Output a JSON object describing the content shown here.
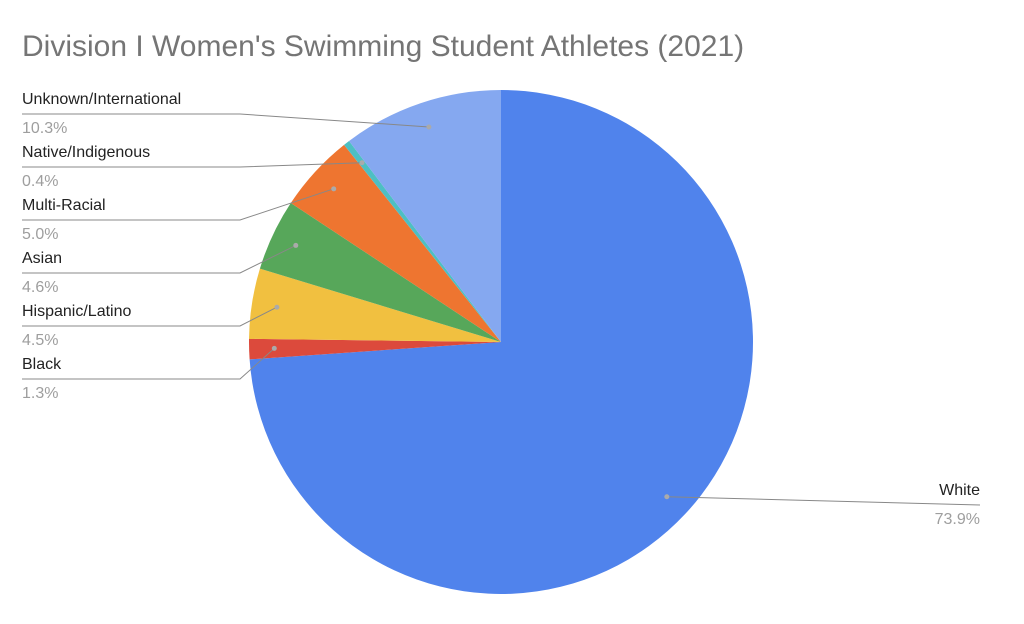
{
  "chart_data": {
    "type": "pie",
    "title": "Division I Women's Swimming Student Athletes (2021)",
    "categories": [
      "White",
      "Black",
      "Hispanic/Latino",
      "Asian",
      "Multi-Racial",
      "Native/Indigenous",
      "Unknown/International"
    ],
    "values": [
      73.9,
      1.3,
      4.5,
      4.6,
      5.0,
      0.4,
      10.3
    ],
    "value_labels": [
      "73.9%",
      "1.3%",
      "4.5%",
      "4.6%",
      "5.0%",
      "0.4%",
      "10.3%"
    ],
    "colors": [
      "#5083ec",
      "#dc4a3c",
      "#f1c040",
      "#57a75a",
      "#ee7530",
      "#4dbfc3",
      "#85a8f0"
    ]
  }
}
